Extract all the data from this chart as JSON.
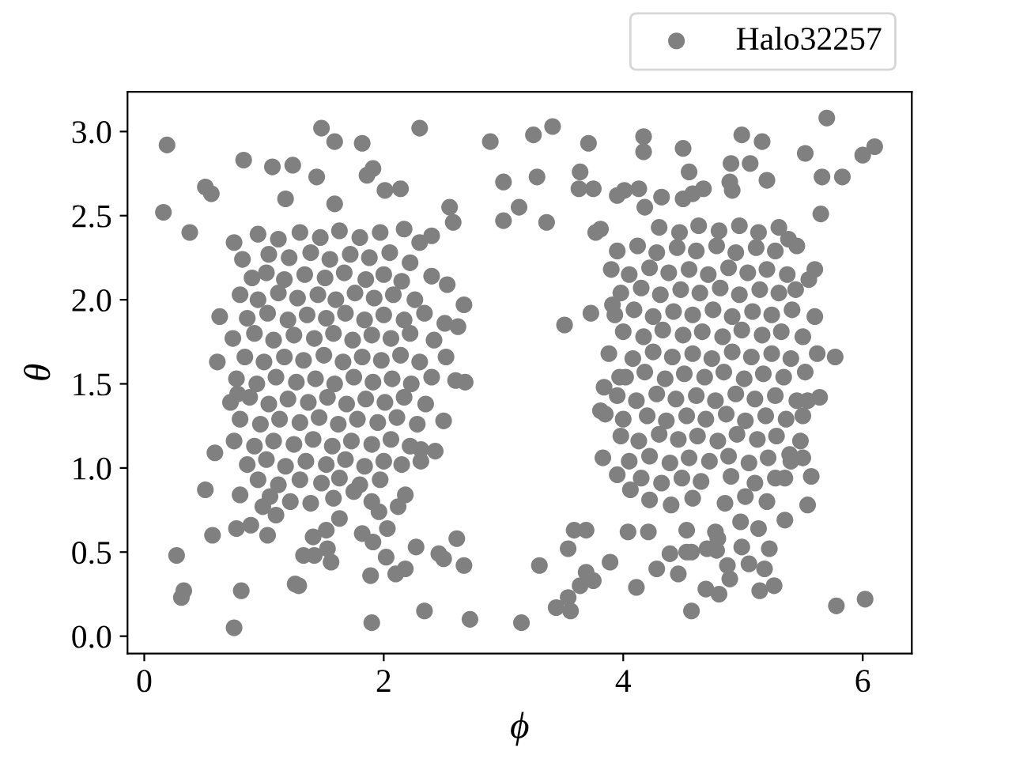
{
  "chart_data": {
    "type": "scatter",
    "xlabel": "ϕ",
    "ylabel": "θ",
    "xlim": [
      -0.14,
      6.41
    ],
    "ylim": [
      -0.103,
      3.236
    ],
    "xticks": [
      0,
      2,
      4,
      6
    ],
    "yticks": [
      {
        "value": 0,
        "label": "0.0"
      },
      0.5,
      {
        "value": 1,
        "label": "1.0"
      },
      1.5,
      {
        "value": 2,
        "label": "2.0"
      },
      2.5,
      {
        "value": 3,
        "label": "3.0"
      }
    ],
    "marker": "circle",
    "legend": "top right",
    "series": [
      {
        "name": "Halo32257",
        "color": "#808080",
        "x": [
          0.19,
          0.16,
          0.38,
          0.51,
          0.56,
          0.83,
          1.07,
          1.24,
          1.44,
          1.18,
          1.48,
          1.59,
          1.82,
          1.91,
          1.86,
          2.3,
          2.89,
          2.14,
          2.01,
          2.55,
          2.58,
          2.17,
          2.3,
          2.4,
          0.75,
          1.59,
          0.63,
          0.61,
          2.67,
          2.62,
          2.51,
          0.27,
          0.33,
          0.31,
          0.75,
          0.81,
          1.26,
          1.29,
          1.9,
          1.89,
          2.02,
          2.1,
          2.18,
          2.27,
          2.34,
          2.46,
          2.5,
          2.61,
          2.67,
          2.72,
          2.68,
          0.59,
          0.51,
          0.57,
          0.77,
          0.89,
          1.03,
          1.1,
          0.99,
          1.33,
          1.42,
          1.56,
          1.53,
          1.41,
          1.52,
          1.63,
          1.82,
          1.91,
          2.03,
          1.96,
          2.12,
          2.18,
          2.31,
          2.43,
          2.31,
          0.78,
          0.8,
          1.39,
          3.0,
          3.28,
          3.0,
          3.13,
          3.36,
          3.41,
          3.25,
          3.71,
          3.64,
          3.63,
          3.75,
          3.51,
          3.73,
          3.91,
          3.15,
          3.44,
          3.56,
          3.54,
          3.3,
          3.54,
          3.59,
          3.69,
          3.69,
          3.75,
          3.64,
          4.17,
          4.17,
          4.5,
          4.99,
          5.16,
          5.52,
          5.7,
          6.0,
          6.1,
          3.95,
          4.01,
          4.13,
          4.18,
          4.32,
          4.5,
          4.58,
          4.67,
          4.89,
          4.91,
          4.55,
          4.9,
          5.06,
          5.66,
          5.83,
          5.2,
          5.65,
          5.77,
          5.55,
          5.44,
          5.38,
          3.81,
          3.77,
          4.11,
          4.04,
          4.21,
          4.28,
          4.46,
          4.57,
          4.39,
          4.53,
          4.57,
          4.69,
          4.8,
          4.7,
          4.78,
          4.87,
          4.89,
          4.99,
          5.05,
          5.18,
          5.14,
          5.26,
          5.22,
          5.35,
          4.53,
          4.77,
          4.79,
          4.98,
          5.13,
          5.78,
          6.02,
          5.54,
          5.57,
          5.39,
          5.5,
          5.35,
          3.83,
          3.95,
          4.06,
          3.85,
          3.81,
          3.84,
          3.97,
          5.54,
          5.5,
          3.89,
          0.95,
          1.12,
          1.3,
          1.47,
          1.63,
          1.8,
          1.97,
          0.82,
          1.04,
          1.21,
          1.39,
          1.55,
          1.72,
          1.88,
          2.05,
          2.22,
          0.9,
          1.02,
          1.17,
          1.34,
          1.51,
          1.67,
          1.85,
          2.0,
          2.15,
          2.4,
          0.8,
          0.95,
          1.12,
          1.28,
          1.45,
          1.6,
          1.76,
          1.92,
          2.08,
          2.26,
          2.53,
          0.86,
          1.03,
          1.2,
          1.36,
          1.52,
          1.68,
          1.84,
          2.0,
          2.17,
          2.34,
          0.74,
          0.92,
          1.08,
          1.25,
          1.42,
          1.58,
          1.74,
          1.9,
          2.06,
          2.22,
          2.42,
          0.84,
          1.0,
          1.17,
          1.33,
          1.5,
          1.66,
          1.82,
          1.98,
          2.14,
          2.3,
          2.52,
          0.77,
          0.94,
          1.1,
          1.27,
          1.43,
          1.59,
          1.75,
          1.91,
          2.07,
          2.23,
          2.4,
          2.6,
          0.72,
          0.88,
          1.04,
          1.2,
          1.37,
          1.53,
          1.69,
          1.85,
          2.01,
          2.17,
          2.35,
          0.8,
          0.97,
          1.13,
          1.3,
          1.46,
          1.62,
          1.78,
          1.95,
          2.11,
          2.28,
          2.5,
          0.75,
          0.92,
          1.08,
          1.25,
          1.41,
          1.57,
          1.73,
          1.9,
          2.06,
          2.22,
          0.86,
          1.02,
          1.18,
          1.35,
          1.52,
          1.68,
          1.84,
          2.0,
          2.15,
          0.95,
          1.12,
          1.3,
          1.48,
          1.63,
          1.8,
          1.97,
          1.05,
          1.22,
          1.58,
          1.75,
          1.9,
          4.3,
          4.47,
          4.63,
          4.8,
          4.97,
          5.13,
          5.3,
          3.95,
          4.12,
          4.28,
          4.45,
          4.61,
          4.78,
          4.94,
          5.11,
          5.27,
          5.45,
          3.9,
          4.05,
          4.22,
          4.38,
          4.55,
          4.71,
          4.88,
          5.04,
          5.2,
          5.37,
          5.6,
          3.98,
          4.15,
          4.31,
          4.48,
          4.64,
          4.81,
          4.97,
          5.14,
          5.3,
          3.93,
          4.09,
          4.25,
          4.42,
          4.58,
          4.75,
          4.91,
          5.08,
          5.24,
          5.41,
          5.6,
          4.0,
          4.17,
          4.33,
          4.5,
          4.66,
          4.83,
          4.99,
          5.16,
          5.32,
          5.5,
          3.88,
          4.08,
          4.25,
          4.41,
          4.58,
          4.74,
          4.91,
          5.07,
          5.24,
          5.4,
          5.62,
          4.02,
          4.18,
          4.35,
          4.51,
          4.68,
          4.84,
          5.01,
          5.17,
          5.34,
          5.52,
          3.95,
          4.11,
          4.28,
          4.44,
          4.61,
          4.77,
          4.94,
          5.1,
          5.27,
          5.45,
          5.64,
          4.0,
          4.2,
          4.36,
          4.53,
          4.69,
          4.86,
          5.02,
          5.19,
          5.36,
          3.98,
          4.13,
          4.3,
          4.46,
          4.62,
          4.79,
          4.95,
          5.12,
          5.28,
          5.48,
          4.05,
          4.22,
          4.39,
          4.55,
          4.72,
          4.88,
          5.05,
          5.21,
          5.4,
          4.15,
          4.32,
          4.49,
          4.65,
          4.9,
          5.1,
          5.27,
          4.22,
          4.4,
          4.58,
          4.85,
          5.02,
          5.2
        ],
        "values": [
          2.92,
          2.52,
          2.4,
          2.67,
          2.63,
          2.83,
          2.79,
          2.8,
          2.73,
          2.6,
          3.02,
          2.94,
          2.93,
          2.78,
          2.74,
          3.02,
          2.94,
          2.66,
          2.65,
          2.55,
          2.46,
          2.42,
          2.34,
          2.38,
          2.34,
          2.57,
          1.9,
          1.63,
          1.97,
          1.84,
          1.86,
          0.48,
          0.27,
          0.23,
          0.05,
          0.27,
          0.31,
          0.3,
          0.08,
          0.36,
          0.47,
          0.37,
          0.4,
          0.53,
          0.15,
          0.49,
          0.46,
          0.58,
          0.42,
          0.1,
          1.51,
          1.09,
          0.87,
          0.6,
          0.64,
          0.66,
          0.6,
          0.72,
          0.77,
          0.48,
          0.48,
          0.44,
          0.52,
          0.59,
          0.63,
          0.7,
          0.61,
          0.56,
          0.64,
          0.74,
          0.77,
          0.84,
          1.04,
          1.1,
          1.11,
          1.44,
          0.84,
          0.79,
          2.7,
          2.73,
          2.47,
          2.55,
          2.46,
          3.03,
          2.98,
          2.93,
          2.76,
          2.66,
          2.66,
          1.85,
          1.92,
          1.97,
          0.08,
          0.17,
          0.15,
          0.23,
          0.42,
          0.52,
          0.63,
          0.63,
          0.38,
          0.33,
          0.3,
          2.97,
          2.88,
          2.9,
          2.98,
          2.94,
          2.87,
          3.08,
          2.86,
          2.91,
          2.62,
          2.65,
          2.66,
          2.55,
          2.61,
          2.6,
          2.63,
          2.66,
          2.7,
          2.65,
          2.76,
          2.81,
          2.81,
          2.73,
          2.73,
          2.71,
          2.51,
          1.66,
          2.12,
          2.06,
          2.36,
          2.42,
          2.4,
          0.29,
          0.62,
          0.62,
          0.4,
          0.37,
          0.15,
          0.49,
          0.5,
          0.5,
          0.28,
          0.25,
          0.52,
          0.51,
          0.42,
          0.34,
          0.53,
          0.43,
          0.4,
          0.27,
          0.3,
          0.52,
          0.69,
          0.63,
          0.62,
          0.58,
          0.68,
          0.64,
          0.18,
          0.22,
          0.78,
          0.95,
          1.08,
          1.06,
          0.94,
          1.06,
          0.96,
          0.87,
          1.32,
          1.34,
          1.48,
          1.54,
          1.4,
          1.31,
          0.44,
          2.39,
          2.36,
          2.4,
          2.37,
          2.41,
          2.37,
          2.4,
          2.24,
          2.27,
          2.25,
          2.28,
          2.24,
          2.27,
          2.25,
          2.28,
          2.22,
          2.13,
          2.16,
          2.12,
          2.15,
          2.13,
          2.16,
          2.12,
          2.15,
          2.11,
          2.14,
          2.03,
          2.0,
          2.04,
          2.01,
          2.03,
          2.0,
          2.04,
          2.01,
          2.03,
          2.0,
          2.09,
          1.89,
          1.92,
          1.88,
          1.91,
          1.89,
          1.92,
          1.88,
          1.91,
          1.88,
          1.92,
          1.77,
          1.8,
          1.76,
          1.79,
          1.77,
          1.8,
          1.76,
          1.79,
          1.77,
          1.8,
          1.76,
          1.66,
          1.63,
          1.66,
          1.64,
          1.67,
          1.63,
          1.66,
          1.64,
          1.67,
          1.63,
          1.66,
          1.53,
          1.5,
          1.54,
          1.51,
          1.53,
          1.5,
          1.54,
          1.51,
          1.53,
          1.5,
          1.54,
          1.52,
          1.39,
          1.42,
          1.38,
          1.41,
          1.39,
          1.42,
          1.38,
          1.41,
          1.39,
          1.42,
          1.38,
          1.29,
          1.26,
          1.29,
          1.27,
          1.3,
          1.26,
          1.29,
          1.27,
          1.3,
          1.26,
          1.28,
          1.16,
          1.13,
          1.16,
          1.14,
          1.17,
          1.13,
          1.16,
          1.14,
          1.17,
          1.13,
          1.02,
          1.05,
          1.01,
          1.04,
          1.02,
          1.05,
          1.01,
          1.04,
          1.02,
          0.93,
          0.9,
          0.93,
          0.91,
          0.94,
          0.9,
          0.93,
          0.83,
          0.8,
          0.82,
          0.86,
          0.8,
          2.43,
          2.4,
          2.44,
          2.41,
          2.44,
          2.4,
          2.43,
          2.29,
          2.32,
          2.28,
          2.31,
          2.29,
          2.32,
          2.28,
          2.31,
          2.29,
          2.32,
          2.18,
          2.15,
          2.19,
          2.16,
          2.18,
          2.15,
          2.19,
          2.16,
          2.18,
          2.15,
          2.18,
          2.04,
          2.07,
          2.03,
          2.06,
          2.04,
          2.07,
          2.03,
          2.06,
          2.04,
          1.91,
          1.94,
          1.9,
          1.93,
          1.91,
          1.94,
          1.9,
          1.93,
          1.91,
          1.94,
          1.9,
          1.81,
          1.78,
          1.82,
          1.79,
          1.81,
          1.78,
          1.82,
          1.79,
          1.81,
          1.78,
          1.68,
          1.65,
          1.69,
          1.66,
          1.68,
          1.65,
          1.69,
          1.66,
          1.68,
          1.65,
          1.68,
          1.54,
          1.57,
          1.53,
          1.56,
          1.54,
          1.57,
          1.53,
          1.56,
          1.54,
          1.57,
          1.43,
          1.4,
          1.44,
          1.41,
          1.43,
          1.4,
          1.44,
          1.41,
          1.43,
          1.4,
          1.42,
          1.29,
          1.31,
          1.28,
          1.31,
          1.29,
          1.32,
          1.28,
          1.31,
          1.29,
          1.19,
          1.16,
          1.2,
          1.17,
          1.19,
          1.16,
          1.2,
          1.17,
          1.19,
          1.16,
          1.04,
          1.07,
          1.03,
          1.06,
          1.04,
          1.07,
          1.03,
          1.06,
          1.04,
          0.94,
          0.91,
          0.94,
          0.92,
          0.95,
          0.91,
          0.94,
          0.81,
          0.78,
          0.82,
          0.79,
          0.83,
          0.8
        ]
      }
    ]
  }
}
